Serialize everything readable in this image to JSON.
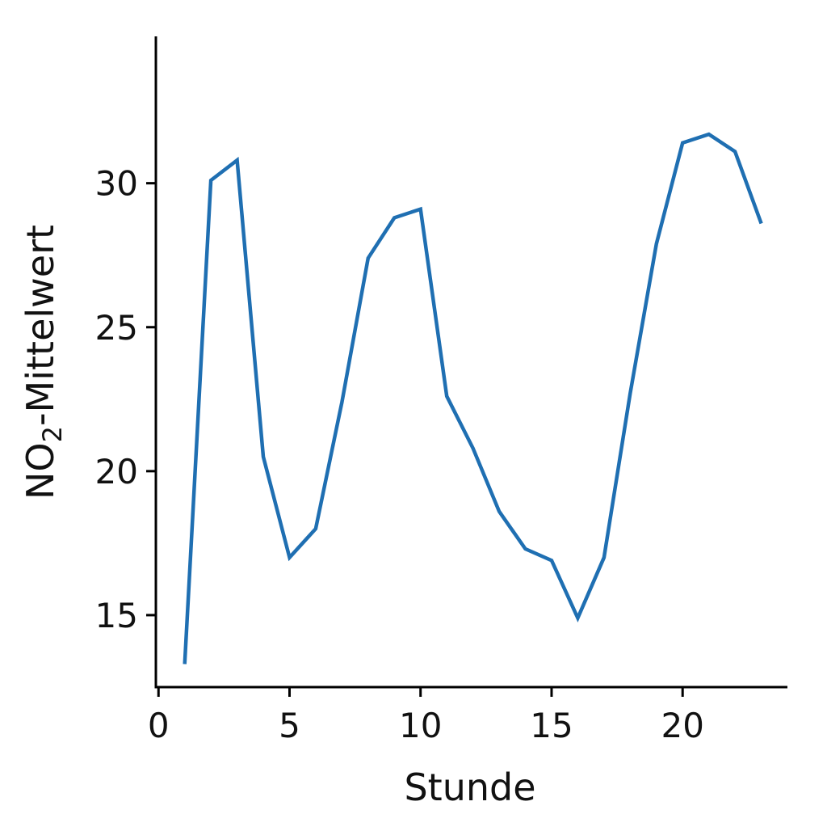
{
  "chart_data": {
    "type": "line",
    "title": "",
    "xlabel": "Stunde",
    "ylabel_main": "NO",
    "ylabel_sub": "2",
    "ylabel_rest": "-Mittelwert",
    "xlim": [
      -0.1,
      24
    ],
    "ylim": [
      12.5,
      35.1
    ],
    "x_ticks": [
      0,
      5,
      10,
      15,
      20
    ],
    "x_tick_labels": [
      "0",
      "5",
      "10",
      "15",
      "20"
    ],
    "y_ticks": [
      15,
      20,
      25,
      30
    ],
    "y_tick_labels": [
      "15",
      "20",
      "25",
      "30"
    ],
    "grid": false,
    "series": [
      {
        "color": "#1f6fb2",
        "x": [
          1,
          2,
          3,
          4,
          5,
          6,
          7,
          8,
          9,
          10,
          11,
          12,
          13,
          14,
          15,
          16,
          17,
          18,
          19,
          20,
          21,
          22,
          23
        ],
        "y": [
          13.3,
          30.1,
          30.8,
          20.5,
          17.0,
          18.0,
          22.4,
          27.4,
          28.8,
          29.1,
          22.6,
          20.8,
          18.6,
          17.3,
          16.9,
          14.9,
          17.0,
          22.7,
          27.9,
          31.4,
          31.7,
          31.1,
          28.6
        ]
      }
    ]
  }
}
